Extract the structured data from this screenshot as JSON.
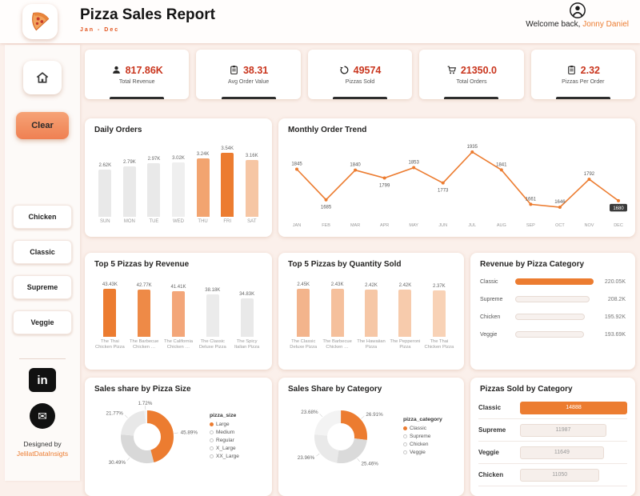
{
  "header": {
    "title": "Pizza Sales Report",
    "subtitle": "Jan - Dec",
    "welcome_prefix": "Welcome back,",
    "welcome_name": "Jonny Daniel"
  },
  "sidebar": {
    "clear_label": "Clear",
    "filters": [
      "Chicken",
      "Classic",
      "Supreme",
      "Veggie"
    ],
    "designed_by": "Designed by",
    "designer": "JelilatDataInsigts"
  },
  "kpis": [
    {
      "value": "817.86K",
      "label": "Total Revenue",
      "icon": "person-coin-icon"
    },
    {
      "value": "38.31",
      "label": "Avg Order Value",
      "icon": "clipboard-icon"
    },
    {
      "value": "49574",
      "label": "Pizzas Sold",
      "icon": "refresh-icon"
    },
    {
      "value": "21350.0",
      "label": "Total Orders",
      "icon": "cart-icon"
    },
    {
      "value": "2.32",
      "label": "Pizzas Per Order",
      "icon": "clipboard-icon"
    }
  ],
  "colors": {
    "accent": "#EC7C30",
    "kpi_value": "#C9351D",
    "background": "#FBF0EB",
    "dark_text": "#252423"
  },
  "chart_data": [
    {
      "type": "bar",
      "title": "Daily Orders",
      "categories": [
        "SUN",
        "MON",
        "TUE",
        "WED",
        "THU",
        "FRI",
        "SAT"
      ],
      "values": [
        2620,
        2790,
        2970,
        3020,
        3240,
        3540,
        3160
      ],
      "labels": [
        "2.62K",
        "2.79K",
        "2.97K",
        "3.02K",
        "3.24K",
        "3.54K",
        "3.16K"
      ],
      "colors": [
        "#E9E9E9",
        "#E9E9E9",
        "#E9E9E9",
        "#EFEFEF",
        "#F2A470",
        "#EC7C30",
        "#F6C6A4"
      ]
    },
    {
      "type": "line",
      "title": "Monthly Order Trend",
      "categories": [
        "JAN",
        "FEB",
        "MAR",
        "APR",
        "MAY",
        "JUN",
        "JUL",
        "AUG",
        "SEP",
        "OCT",
        "NOV",
        "DEC"
      ],
      "values": [
        1845,
        1685,
        1840,
        1799,
        1853,
        1773,
        1935,
        1841,
        1661,
        1646,
        1792,
        1680
      ],
      "ylim": [
        1600,
        1960
      ],
      "label_below": [
        1,
        3,
        5,
        11
      ],
      "badge_index": 11,
      "color": "#EC7C30"
    },
    {
      "type": "bar",
      "title": "Top 5 Pizzas by Revenue",
      "categories": [
        "The Thai Chicken Pizza",
        "The Barbecue Chicken …",
        "The California Chicken …",
        "The Classic Deluxe Pizza",
        "The Spicy Italian Pizza"
      ],
      "values": [
        43430,
        42770,
        41410,
        38180,
        34830
      ],
      "labels": [
        "43.43K",
        "42.77K",
        "41.41K",
        "38.18K",
        "34.83K"
      ],
      "colors": [
        "#EC7C30",
        "#EE8A47",
        "#F3A679",
        "#EBEBEB",
        "#E9E9E9"
      ]
    },
    {
      "type": "bar",
      "title": "Top 5 Pizzas by Quantity Sold",
      "categories": [
        "The Classic Deluxe Pizza",
        "The Barbecue Chicken …",
        "The Hawaiian Pizza",
        "The Pepperoni Pizza",
        "The Thai Chicken Pizza"
      ],
      "values": [
        2450,
        2430,
        2420,
        2420,
        2370
      ],
      "labels": [
        "2.45K",
        "2.43K",
        "2.42K",
        "2.42K",
        "2.37K"
      ],
      "colors": [
        "#F3B48C",
        "#F5C09C",
        "#F6C7A6",
        "#F7CBAC",
        "#F8D2B6"
      ]
    },
    {
      "type": "hbar",
      "title": "Revenue by Pizza Category",
      "categories": [
        "Classic",
        "Supreme",
        "Chicken",
        "Veggie"
      ],
      "values": [
        220050,
        208200,
        195920,
        193690
      ],
      "labels": [
        "220.05K",
        "208.2K",
        "195.92K",
        "193.69K"
      ],
      "colors": [
        "#EC7C30",
        "#F7F1EE",
        "#F7F1EE",
        "#F7F1EE"
      ]
    },
    {
      "type": "donut",
      "title": "Sales share by Pizza Size",
      "legend_title": "pizza_size",
      "categories": [
        "Large",
        "Medium",
        "Regular",
        "X_Large",
        "XX_Large"
      ],
      "values": [
        45.89,
        30.49,
        21.77,
        1.72,
        0.13
      ],
      "labels": [
        "45.89%",
        "30.49%",
        "21.77%",
        "1.72%",
        ""
      ],
      "colors": [
        "#EC7C30",
        "#D8D8D8",
        "#E8E8E8",
        "#F2F2F2",
        "#FAFAFA"
      ]
    },
    {
      "type": "donut",
      "title": "Sales Share by Category",
      "legend_title": "pizza_category",
      "categories": [
        "Classic",
        "Supreme",
        "Chicken",
        "Veggie"
      ],
      "values": [
        26.91,
        25.46,
        23.96,
        23.68
      ],
      "labels": [
        "26.91%",
        "25.46%",
        "23.96%",
        "23.68%"
      ],
      "colors": [
        "#EC7C30",
        "#DADADA",
        "#E9E9E9",
        "#F3F3F3"
      ]
    },
    {
      "type": "table",
      "title": "Pizzas Sold by Category",
      "categories": [
        "Classic",
        "Supreme",
        "Veggie",
        "Chicken"
      ],
      "values": [
        14888,
        11987,
        11649,
        11050
      ],
      "labels": [
        "14888",
        "11987",
        "11649",
        "11050"
      ]
    }
  ]
}
